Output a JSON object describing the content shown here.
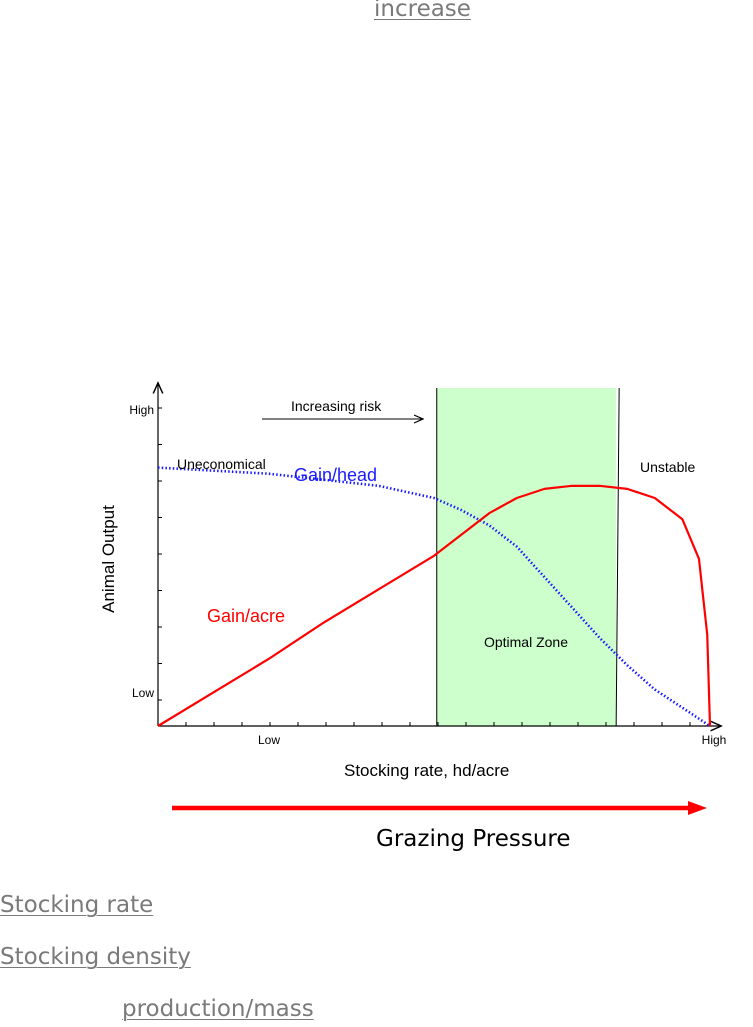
{
  "links": {
    "increase": "increase",
    "stocking_rate": "Stocking rate",
    "stocking_density": "Stocking density",
    "production_mass": "production/mass"
  },
  "colors": {
    "gain_per_head": "#1a1aff",
    "gain_per_acre": "#ff0000",
    "optimal_zone_fill": "#ccffcc",
    "link_text": "#7a7a7a",
    "arrow": "#ff0000"
  },
  "chart_data": {
    "type": "line",
    "xlabel": "Stocking rate, hd/acre",
    "ylabel": "Animal Output",
    "x_ticks": {
      "low": "Low",
      "high": "High"
    },
    "y_ticks": {
      "low": "Low",
      "high": "High"
    },
    "xlim": [
      0,
      1
    ],
    "ylim": [
      0,
      1
    ],
    "grid": false,
    "series": [
      {
        "name": "Gain/head",
        "style": "dotted",
        "color": "#1a1aff",
        "points": [
          [
            0,
            0.85
          ],
          [
            0.1,
            0.84
          ],
          [
            0.2,
            0.83
          ],
          [
            0.3,
            0.81
          ],
          [
            0.4,
            0.79
          ],
          [
            0.5,
            0.75
          ],
          [
            0.55,
            0.71
          ],
          [
            0.6,
            0.66
          ],
          [
            0.65,
            0.59
          ],
          [
            0.7,
            0.49
          ],
          [
            0.75,
            0.39
          ],
          [
            0.8,
            0.29
          ],
          [
            0.85,
            0.2
          ],
          [
            0.9,
            0.12
          ],
          [
            1.0,
            0.0
          ]
        ]
      },
      {
        "name": "Gain/acre",
        "style": "solid",
        "color": "#ff0000",
        "points": [
          [
            0,
            0.0
          ],
          [
            0.1,
            0.11
          ],
          [
            0.2,
            0.22
          ],
          [
            0.3,
            0.34
          ],
          [
            0.4,
            0.45
          ],
          [
            0.5,
            0.56
          ],
          [
            0.55,
            0.63
          ],
          [
            0.6,
            0.7
          ],
          [
            0.65,
            0.75
          ],
          [
            0.7,
            0.78
          ],
          [
            0.75,
            0.79
          ],
          [
            0.8,
            0.79
          ],
          [
            0.85,
            0.78
          ],
          [
            0.9,
            0.75
          ],
          [
            0.95,
            0.68
          ],
          [
            0.98,
            0.55
          ],
          [
            0.995,
            0.3
          ],
          [
            1.0,
            0.0
          ]
        ]
      }
    ],
    "optimal_zone": {
      "x_start": 0.505,
      "x_end": 0.83,
      "label": "Optimal Zone"
    },
    "annotations": {
      "increasing_risk": "Increasing risk",
      "uneconomical": "Uneconomical",
      "unstable": "Unstable"
    },
    "pressure_label": "Grazing Pressure"
  }
}
